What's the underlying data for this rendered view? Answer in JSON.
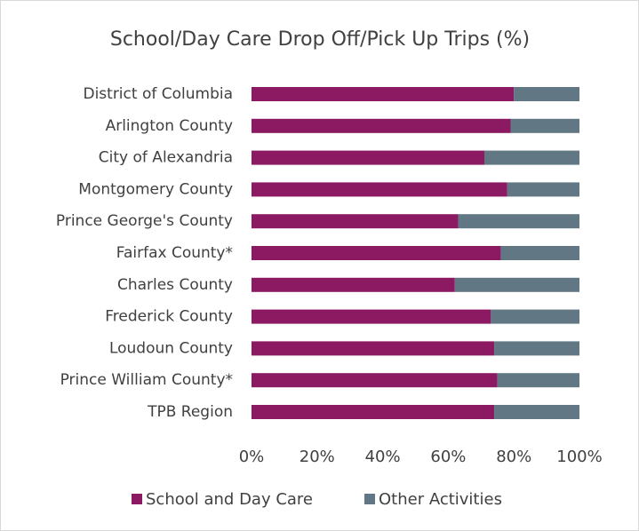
{
  "chart_data": {
    "type": "stacked_barh",
    "title": "School/Day Care Drop Off/Pick Up Trips (%)",
    "categories": [
      "District of Columbia",
      "Arlington County",
      "City of Alexandria",
      "Montgomery County",
      "Prince George's County",
      "Fairfax County*",
      "Charles County",
      "Frederick County",
      "Loudoun County",
      "Prince William County*",
      "TPB Region"
    ],
    "series": [
      {
        "name": "School and Day Care",
        "color": "#8c1a62",
        "values": [
          80,
          79,
          71,
          78,
          63,
          76,
          62,
          73,
          74,
          75,
          74
        ]
      },
      {
        "name": "Other Activities",
        "color": "#627784",
        "values": [
          20,
          21,
          29,
          22,
          37,
          24,
          38,
          27,
          26,
          25,
          26
        ]
      }
    ],
    "xlim": [
      0,
      100
    ],
    "xticks": [
      {
        "value": 0,
        "label": "0%"
      },
      {
        "value": 20,
        "label": "20%"
      },
      {
        "value": 40,
        "label": "40%"
      },
      {
        "value": 60,
        "label": "60%"
      },
      {
        "value": 80,
        "label": "80%"
      },
      {
        "value": 100,
        "label": "100%"
      }
    ],
    "legend": "bottom"
  }
}
